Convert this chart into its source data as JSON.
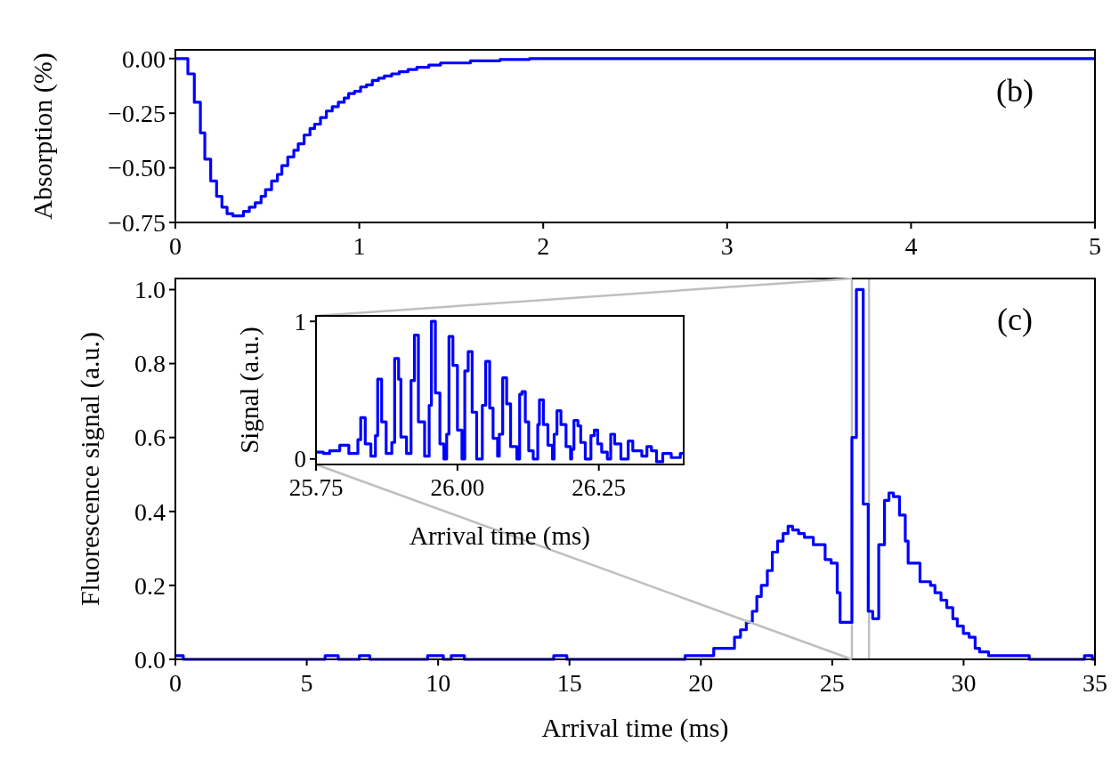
{
  "chart_data": [
    {
      "type": "step",
      "ylabel": "Absorption (%)",
      "annotations": [
        "(b)"
      ],
      "color": "#0000ff",
      "x": [
        0,
        0.068,
        0.103,
        0.136,
        0.16,
        0.192,
        0.224,
        0.253,
        0.281,
        0.313,
        0.37,
        0.402,
        0.434,
        0.466,
        0.49,
        0.523,
        0.555,
        0.579,
        0.611,
        0.644,
        0.668,
        0.7,
        0.732,
        0.757,
        0.789,
        0.821,
        0.853,
        0.886,
        0.918,
        0.942,
        0.974,
        1.007,
        1.039,
        1.071,
        1.104,
        1.136,
        1.176,
        1.217,
        1.265,
        1.313,
        1.378,
        1.442,
        1.523,
        1.604,
        1.765,
        1.926,
        5
      ],
      "values": [
        0,
        -0.07,
        -0.2,
        -0.34,
        -0.46,
        -0.56,
        -0.63,
        -0.68,
        -0.71,
        -0.72,
        -0.7,
        -0.68,
        -0.66,
        -0.63,
        -0.6,
        -0.56,
        -0.53,
        -0.49,
        -0.45,
        -0.42,
        -0.39,
        -0.35,
        -0.32,
        -0.3,
        -0.27,
        -0.24,
        -0.22,
        -0.2,
        -0.18,
        -0.16,
        -0.15,
        -0.13,
        -0.12,
        -0.1,
        -0.09,
        -0.08,
        -0.07,
        -0.06,
        -0.05,
        -0.04,
        -0.03,
        -0.02,
        -0.02,
        -0.01,
        -0.004,
        0,
        0
      ],
      "xlim": [
        0,
        5
      ],
      "ylim": [
        -0.75,
        0.04
      ],
      "xticks": [
        0,
        1,
        2,
        3,
        4,
        5
      ],
      "yticks": [
        {
          "value": 0,
          "label": "0.00"
        },
        {
          "value": -0.25,
          "label": "−0.25"
        },
        {
          "value": -0.5,
          "label": "−0.50"
        },
        {
          "value": -0.75,
          "label": "−0.75"
        }
      ]
    },
    {
      "type": "step",
      "xlabel": "Arrival time (ms)",
      "ylabel": "Fluorescence signal (a.u.)",
      "annotations": [
        "(c)"
      ],
      "color": "#0000ff",
      "x": [
        0,
        0.3,
        5.7,
        6.2,
        7.0,
        7.4,
        9.6,
        10.2,
        10.5,
        11.0,
        14.4,
        14.9,
        19.4,
        20.49,
        21.28,
        21.51,
        21.73,
        21.96,
        22.13,
        22.3,
        22.53,
        22.72,
        22.92,
        23.13,
        23.32,
        23.49,
        23.72,
        23.94,
        24.28,
        24.73,
        24.96,
        25.19,
        25.3,
        25.75,
        25.92,
        26.18,
        26.37,
        26.54,
        26.77,
        26.99,
        27.16,
        27.33,
        27.56,
        27.78,
        27.89,
        28.34,
        28.74,
        28.91,
        29.14,
        29.36,
        29.59,
        29.76,
        29.99,
        30.21,
        30.44,
        30.61,
        30.95,
        32.5,
        34.6,
        34.9,
        35
      ],
      "values": [
        0.01,
        0,
        0.01,
        0,
        0.01,
        0,
        0.01,
        0,
        0.01,
        0,
        0.01,
        0,
        0.01,
        0.03,
        0.06,
        0.08,
        0.1,
        0.13,
        0.17,
        0.2,
        0.24,
        0.29,
        0.32,
        0.34,
        0.36,
        0.35,
        0.34,
        0.33,
        0.31,
        0.27,
        0.26,
        0.18,
        0.1,
        0.6,
        1.0,
        0.42,
        0.13,
        0.11,
        0.31,
        0.43,
        0.45,
        0.44,
        0.39,
        0.32,
        0.26,
        0.21,
        0.2,
        0.18,
        0.16,
        0.14,
        0.11,
        0.09,
        0.07,
        0.06,
        0.03,
        0.02,
        0.01,
        0,
        0.01,
        0,
        0
      ],
      "xlim": [
        0,
        35
      ],
      "ylim": [
        0,
        1.03
      ],
      "xticks": [
        0,
        5,
        10,
        15,
        20,
        25,
        30,
        35
      ],
      "yticks": [
        {
          "value": 0,
          "label": "0.0"
        },
        {
          "value": 0.2,
          "label": "0.2"
        },
        {
          "value": 0.4,
          "label": "0.4"
        },
        {
          "value": 0.6,
          "label": "0.6"
        },
        {
          "value": 0.8,
          "label": "0.8"
        },
        {
          "value": 1,
          "label": "1.0"
        }
      ],
      "ref_lines": [
        {
          "axis": "x",
          "value": 25.75,
          "color": "#bfbfbf"
        },
        {
          "axis": "x",
          "value": 26.4,
          "color": "#bfbfbf"
        }
      ]
    },
    {
      "type": "step",
      "xlabel": "Arrival time (ms)",
      "ylabel": "Signal (a.u.)",
      "color": "#0000ff",
      "x": [
        25.75,
        25.763,
        25.774,
        25.792,
        25.808,
        25.824,
        25.829,
        25.837,
        25.847,
        25.855,
        25.859,
        25.866,
        25.874,
        25.884,
        25.889,
        25.896,
        25.9,
        25.91,
        25.918,
        25.924,
        25.931,
        25.942,
        25.95,
        25.954,
        25.961,
        25.969,
        25.976,
        25.981,
        25.985,
        25.992,
        26.0,
        26.008,
        26.013,
        26.019,
        26.026,
        26.034,
        26.044,
        26.05,
        26.057,
        26.063,
        26.071,
        26.074,
        26.08,
        26.087,
        26.094,
        26.105,
        26.11,
        26.114,
        26.12,
        26.126,
        26.134,
        26.142,
        26.145,
        26.152,
        26.16,
        26.168,
        26.171,
        26.176,
        26.183,
        26.192,
        26.2,
        26.202,
        26.206,
        26.213,
        26.218,
        26.226,
        26.236,
        26.242,
        26.248,
        26.255,
        26.265,
        26.271,
        26.278,
        26.289,
        26.302,
        26.31,
        26.326,
        26.335,
        26.343,
        26.352,
        26.363,
        26.378,
        26.394,
        26.4
      ],
      "values": [
        0.05,
        0.04,
        0.06,
        0.1,
        0.04,
        0.14,
        0.3,
        0.11,
        0.02,
        0.17,
        0.58,
        0.27,
        0.04,
        0.12,
        0.73,
        0.58,
        0.16,
        0.04,
        0.57,
        0.9,
        0.27,
        0.02,
        0.39,
        1.0,
        0.48,
        0.11,
        0,
        0.18,
        0.89,
        0.68,
        0.21,
        0,
        0.64,
        0.78,
        0.34,
        0,
        0.39,
        0.71,
        0.37,
        0.15,
        0.02,
        0.18,
        0.59,
        0.4,
        0.09,
        0,
        0.47,
        0.49,
        0.27,
        0.06,
        0,
        0.25,
        0.43,
        0.25,
        0.1,
        0,
        0.18,
        0.35,
        0.25,
        0.09,
        0,
        0.07,
        0.28,
        0.24,
        0.12,
        0,
        0.17,
        0.21,
        0.11,
        0.05,
        0,
        0.18,
        0.11,
        0,
        0.13,
        0.06,
        0.02,
        0.09,
        0.06,
        -0.02,
        0.04,
        0.01,
        0.04,
        0.04
      ],
      "xlim": [
        25.75,
        26.4
      ],
      "ylim": [
        -0.04,
        1.04
      ],
      "xticks": [
        {
          "value": 25.75,
          "label": "25.75"
        },
        {
          "value": 26,
          "label": "26.00"
        },
        {
          "value": 26.25,
          "label": "26.25"
        }
      ],
      "yticks": [
        0,
        1
      ]
    }
  ]
}
